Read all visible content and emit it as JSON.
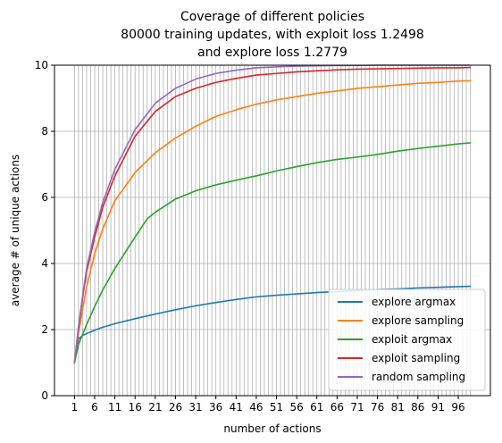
{
  "chart_data": {
    "type": "line",
    "title_lines": [
      "Coverage of different policies",
      "80000 training updates, with exploit loss 1.2498",
      "and explore loss 1.2779"
    ],
    "xlabel": "number of actions",
    "ylabel": "average # of unique actions",
    "xlim": [
      -3.95,
      103.95
    ],
    "ylim": [
      0,
      10
    ],
    "x_ticks": [
      1,
      6,
      11,
      16,
      21,
      26,
      31,
      36,
      41,
      46,
      51,
      56,
      61,
      66,
      71,
      76,
      81,
      86,
      91,
      96
    ],
    "y_ticks": [
      0,
      2,
      4,
      6,
      8,
      10
    ],
    "grid": {
      "vertical_every": 1,
      "vertical_from": 1,
      "vertical_to": 99,
      "horizontal": true
    },
    "legend": {
      "placement": "lower-right"
    },
    "colors": {
      "axis": "#000000",
      "grid": "#b0b0b0"
    },
    "series": [
      {
        "name": "explore argmax",
        "color": "#1f77b4",
        "points": [
          [
            1,
            1.0
          ],
          [
            2,
            1.72
          ],
          [
            3,
            1.82
          ],
          [
            4,
            1.88
          ],
          [
            5,
            1.93
          ],
          [
            6,
            1.98
          ],
          [
            8,
            2.07
          ],
          [
            11,
            2.18
          ],
          [
            16,
            2.33
          ],
          [
            21,
            2.47
          ],
          [
            26,
            2.6
          ],
          [
            31,
            2.72
          ],
          [
            36,
            2.82
          ],
          [
            41,
            2.91
          ],
          [
            46,
            2.99
          ],
          [
            51,
            3.04
          ],
          [
            56,
            3.08
          ],
          [
            61,
            3.12
          ],
          [
            66,
            3.15
          ],
          [
            71,
            3.18
          ],
          [
            76,
            3.21
          ],
          [
            81,
            3.23
          ],
          [
            86,
            3.26
          ],
          [
            91,
            3.28
          ],
          [
            96,
            3.3
          ],
          [
            99,
            3.31
          ]
        ]
      },
      {
        "name": "explore sampling",
        "color": "#ff7f0e",
        "points": [
          [
            1,
            1.0
          ],
          [
            2,
            1.9
          ],
          [
            3,
            2.6
          ],
          [
            4,
            3.3
          ],
          [
            6,
            4.3
          ],
          [
            8,
            5.05
          ],
          [
            11,
            5.9
          ],
          [
            16,
            6.75
          ],
          [
            21,
            7.35
          ],
          [
            26,
            7.8
          ],
          [
            31,
            8.15
          ],
          [
            36,
            8.45
          ],
          [
            41,
            8.65
          ],
          [
            46,
            8.82
          ],
          [
            51,
            8.95
          ],
          [
            56,
            9.05
          ],
          [
            61,
            9.15
          ],
          [
            66,
            9.22
          ],
          [
            71,
            9.3
          ],
          [
            76,
            9.35
          ],
          [
            81,
            9.4
          ],
          [
            86,
            9.45
          ],
          [
            91,
            9.48
          ],
          [
            96,
            9.52
          ],
          [
            99,
            9.53
          ]
        ]
      },
      {
        "name": "exploit argmax",
        "color": "#2ca02c",
        "points": [
          [
            1,
            1.0
          ],
          [
            2,
            1.55
          ],
          [
            3,
            1.85
          ],
          [
            4,
            2.15
          ],
          [
            6,
            2.7
          ],
          [
            8,
            3.2
          ],
          [
            11,
            3.85
          ],
          [
            16,
            4.8
          ],
          [
            19,
            5.35
          ],
          [
            21,
            5.55
          ],
          [
            26,
            5.95
          ],
          [
            31,
            6.2
          ],
          [
            36,
            6.38
          ],
          [
            41,
            6.52
          ],
          [
            46,
            6.65
          ],
          [
            51,
            6.8
          ],
          [
            56,
            6.93
          ],
          [
            61,
            7.05
          ],
          [
            66,
            7.15
          ],
          [
            71,
            7.22
          ],
          [
            76,
            7.3
          ],
          [
            81,
            7.4
          ],
          [
            86,
            7.48
          ],
          [
            91,
            7.55
          ],
          [
            96,
            7.62
          ],
          [
            99,
            7.65
          ]
        ]
      },
      {
        "name": "exploit sampling",
        "color": "#d62728",
        "points": [
          [
            1,
            1.0
          ],
          [
            2,
            2.05
          ],
          [
            3,
            2.95
          ],
          [
            4,
            3.75
          ],
          [
            6,
            4.8
          ],
          [
            8,
            5.7
          ],
          [
            11,
            6.65
          ],
          [
            16,
            7.85
          ],
          [
            21,
            8.6
          ],
          [
            26,
            9.05
          ],
          [
            31,
            9.3
          ],
          [
            36,
            9.48
          ],
          [
            41,
            9.6
          ],
          [
            46,
            9.7
          ],
          [
            51,
            9.75
          ],
          [
            56,
            9.8
          ],
          [
            61,
            9.83
          ],
          [
            66,
            9.86
          ],
          [
            71,
            9.88
          ],
          [
            76,
            9.89
          ],
          [
            81,
            9.9
          ],
          [
            86,
            9.91
          ],
          [
            91,
            9.92
          ],
          [
            96,
            9.92
          ],
          [
            99,
            9.93
          ]
        ]
      },
      {
        "name": "random sampling",
        "color": "#9467bd",
        "points": [
          [
            1,
            1.0
          ],
          [
            2,
            2.1
          ],
          [
            3,
            3.0
          ],
          [
            4,
            3.85
          ],
          [
            6,
            4.95
          ],
          [
            8,
            5.85
          ],
          [
            11,
            6.85
          ],
          [
            16,
            8.05
          ],
          [
            21,
            8.85
          ],
          [
            26,
            9.3
          ],
          [
            31,
            9.58
          ],
          [
            36,
            9.75
          ],
          [
            41,
            9.85
          ],
          [
            46,
            9.92
          ],
          [
            51,
            9.95
          ],
          [
            56,
            9.97
          ],
          [
            61,
            9.98
          ],
          [
            66,
            9.99
          ],
          [
            71,
            9.99
          ],
          [
            76,
            10.0
          ],
          [
            81,
            10.0
          ],
          [
            86,
            10.0
          ],
          [
            91,
            10.0
          ],
          [
            96,
            10.0
          ],
          [
            99,
            10.0
          ]
        ]
      }
    ]
  }
}
